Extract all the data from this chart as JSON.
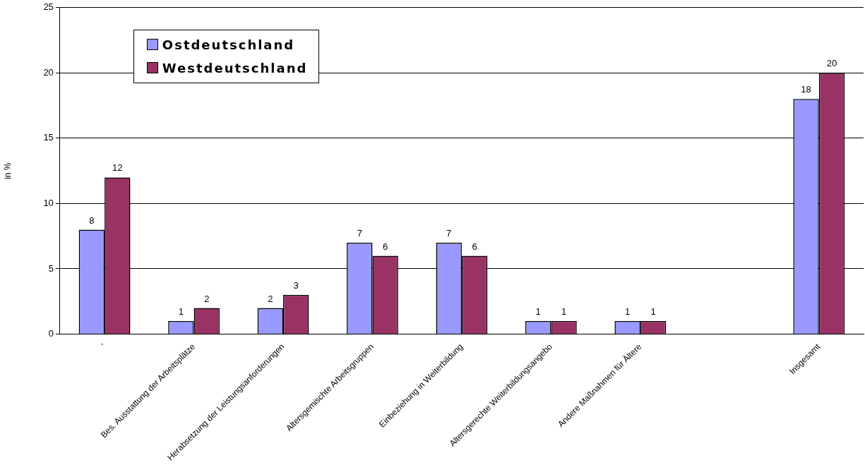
{
  "chart_data": {
    "type": "bar",
    "ylabel": "in %",
    "categories": [
      "'",
      "Bes. Ausstattung der Arbeitsplätze",
      "Herabsetzung der Leistungsanforderungen",
      "Altersgemischte Arbeitsgruppen",
      "Einbeziehung in Weiterbildung",
      "Altersgerechte Weiterbildungsangebo",
      "Andere Maßnahmen für Ältere",
      null,
      "Insgesamt"
    ],
    "series": [
      {
        "name": "Ostdeutschland",
        "color": "#9999ff",
        "values": [
          8,
          1,
          2,
          7,
          7,
          1,
          1,
          null,
          18
        ]
      },
      {
        "name": "Westdeutschland",
        "color": "#993366",
        "values": [
          12,
          2,
          3,
          6,
          6,
          1,
          1,
          null,
          20
        ]
      }
    ],
    "ylim": [
      0,
      25
    ],
    "yticks": [
      0,
      5,
      10,
      15,
      20,
      25
    ],
    "grid": "y",
    "legend": "top left",
    "data_labels": true
  }
}
